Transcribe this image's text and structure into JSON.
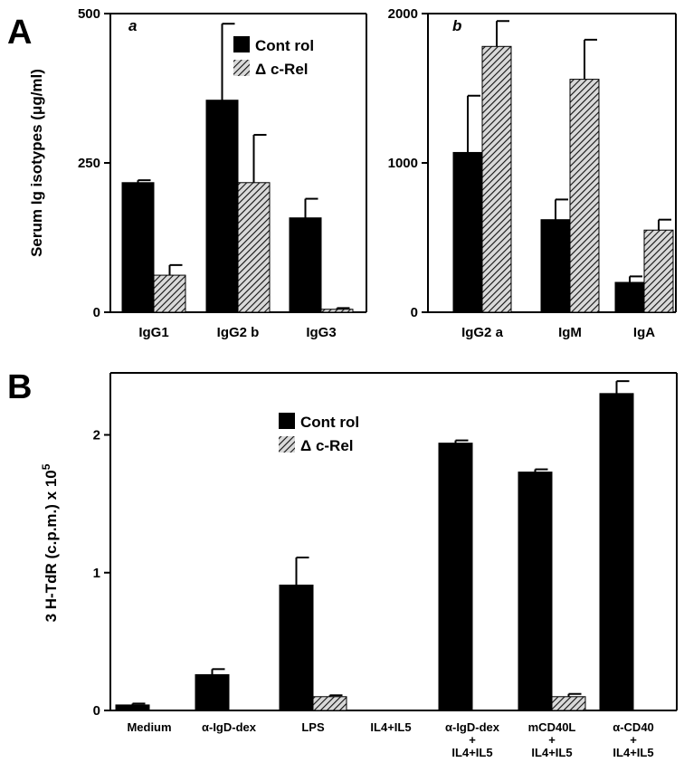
{
  "figure": {
    "panel_A_label": "A",
    "panel_B_label": "B",
    "series_names": [
      "Control",
      "Δc-Rel"
    ],
    "legend_labels": [
      "Cont rol",
      "Δ c-Rel"
    ],
    "colors": {
      "control": "#000000",
      "mutant_hatch": "#000000",
      "background": "#ffffff"
    }
  },
  "chart_data": [
    {
      "id": "A-a",
      "type": "bar",
      "panel_label": "a",
      "ylabel": "Serum Ig isotypes (μg/ml)",
      "ylim": [
        0,
        500
      ],
      "yticks": [
        0,
        250,
        500
      ],
      "ytick_labels": [
        "0",
        "250",
        "500"
      ],
      "categories": [
        "IgG1",
        "IgG2 b",
        "IgG3"
      ],
      "category_labels": [
        [
          "IgG1"
        ],
        [
          "IgG2 b"
        ],
        [
          "IgG3"
        ]
      ],
      "series": [
        {
          "name": "Control",
          "values": [
            217,
            355,
            158
          ],
          "errors": [
            4,
            128,
            32
          ]
        },
        {
          "name": "Δc-Rel",
          "values": [
            62,
            217,
            5
          ],
          "errors": [
            17,
            80,
            2
          ]
        }
      ],
      "legend": "top-right"
    },
    {
      "id": "A-b",
      "type": "bar",
      "panel_label": "b",
      "ylim": [
        0,
        2000
      ],
      "yticks": [
        0,
        1000,
        2000
      ],
      "ytick_labels": [
        "0",
        "1000",
        "2000"
      ],
      "categories": [
        "IgG2 a",
        "IgM",
        "IgA"
      ],
      "category_labels": [
        [
          "IgG2 a"
        ],
        [
          "IgM"
        ],
        [
          "IgA"
        ]
      ],
      "series": [
        {
          "name": "Control",
          "values": [
            1070,
            620,
            200
          ],
          "errors": [
            380,
            135,
            40
          ]
        },
        {
          "name": "Δc-Rel",
          "values": [
            1780,
            1560,
            550
          ],
          "errors": [
            170,
            265,
            70
          ]
        }
      ]
    },
    {
      "id": "B",
      "type": "bar",
      "ylabel": "3 H-TdR (c.p.m.) x 10",
      "ylabel_exponent": "5",
      "ylim": [
        0,
        2.45
      ],
      "yticks": [
        0,
        1,
        2
      ],
      "ytick_labels": [
        "0",
        "1",
        "2"
      ],
      "categories": [
        "Medium",
        "α-IgD-dex",
        "LPS",
        "IL4+IL5",
        "α-IgD-dex + IL4+IL5",
        "mCD40L + IL4+IL5",
        "α-CD40 + IL4+IL5"
      ],
      "category_labels": [
        [
          "Medium"
        ],
        [
          "α-IgD-dex"
        ],
        [
          "LPS"
        ],
        [
          "IL4+IL5"
        ],
        [
          "α-IgD-dex",
          "+",
          "IL4+IL5"
        ],
        [
          "mCD40L",
          "+",
          "IL4+IL5"
        ],
        [
          "α-CD40",
          "+",
          "IL4+IL5"
        ]
      ],
      "series": [
        {
          "name": "Control",
          "values": [
            0.04,
            0.26,
            0.91,
            0.0,
            1.94,
            1.73,
            2.3
          ],
          "errors": [
            0.01,
            0.04,
            0.2,
            0.0,
            0.02,
            0.02,
            0.09
          ]
        },
        {
          "name": "Δc-Rel",
          "values": [
            0.0,
            0.0,
            0.1,
            0.0,
            0.0,
            0.1,
            0.0
          ],
          "errors": [
            0.0,
            0.0,
            0.01,
            0.0,
            0.0,
            0.02,
            0.0
          ]
        }
      ],
      "legend": "top-center"
    }
  ]
}
